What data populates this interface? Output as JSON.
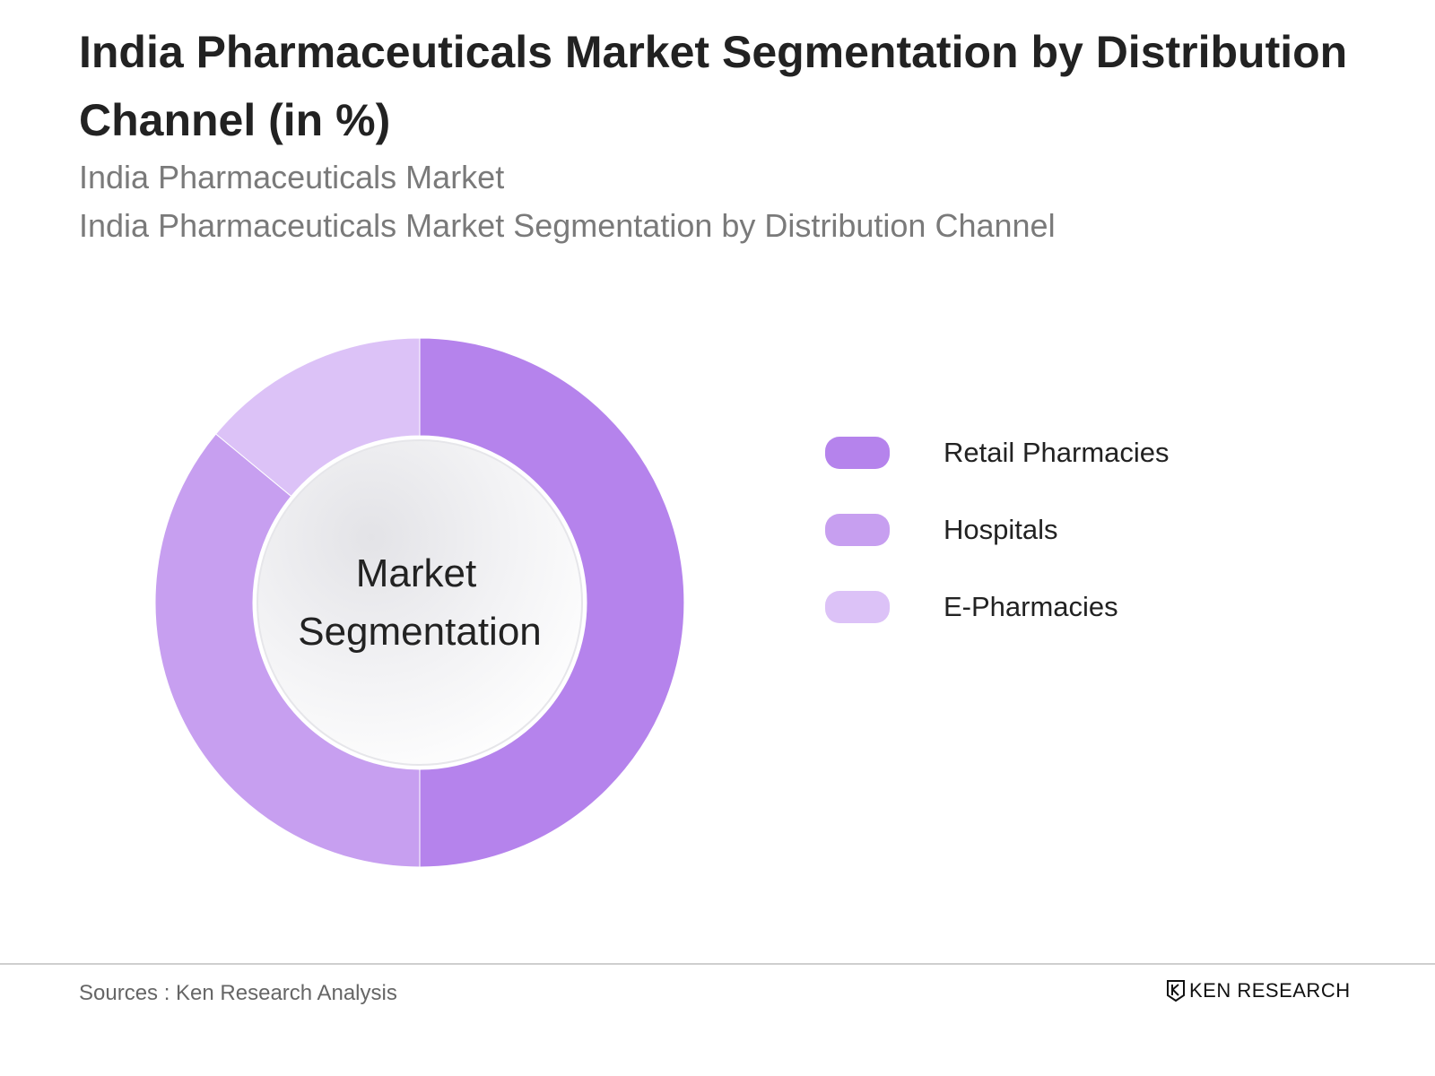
{
  "header": {
    "title": "India Pharmaceuticals Market Segmentation by Distribution Channel (in %)",
    "subtitle1": "India Pharmaceuticals Market",
    "subtitle2": "India Pharmaceuticals Market Segmentation by Distribution Channel"
  },
  "chart_data": {
    "type": "pie",
    "variant": "donut",
    "center_label": [
      "Market",
      "Segmentation"
    ],
    "categories": [
      "Retail Pharmacies",
      "Hospitals",
      "E-Pharmacies"
    ],
    "values": [
      50,
      36,
      14
    ],
    "colors": [
      "#b583ec",
      "#c79ff0",
      "#dcc2f7"
    ],
    "legend_position": "right"
  },
  "footer": {
    "source": "Sources : Ken Research Analysis",
    "logo_text": "KEN RESEARCH"
  }
}
